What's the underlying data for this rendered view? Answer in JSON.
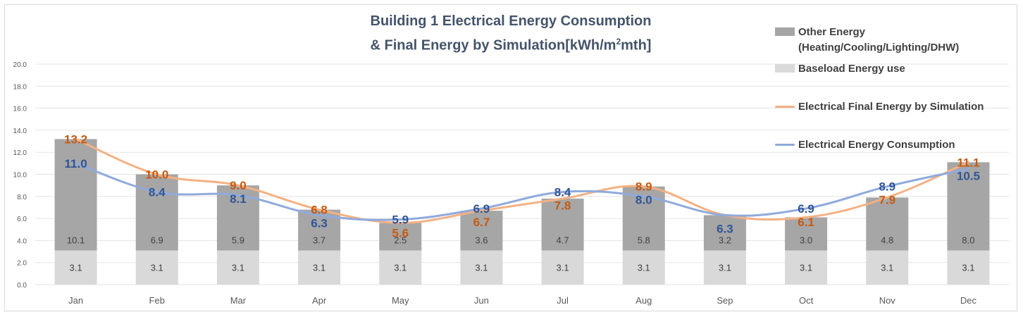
{
  "chart_data": {
    "type": "bar",
    "title_line1": "Building 1 Electrical Energy Consumption",
    "title_line2_prefix": "& Final Energy by Simulation[kWh/m",
    "title_line2_sup": "2",
    "title_line2_suffix": "mth]",
    "categories": [
      "Jan",
      "Feb",
      "Mar",
      "Apr",
      "May",
      "Jun",
      "Jul",
      "Aug",
      "Sep",
      "Oct",
      "Nov",
      "Dec"
    ],
    "ylim": [
      0,
      20
    ],
    "yticks": [
      "0.0",
      "2.0",
      "4.0",
      "6.0",
      "8.0",
      "10.0",
      "12.0",
      "14.0",
      "16.0",
      "18.0",
      "20.0"
    ],
    "grid": true,
    "legend_position": "right",
    "series": [
      {
        "name": "Baseload Energy use",
        "kind": "bar",
        "color": "#d9d9d9",
        "values": [
          3.1,
          3.1,
          3.1,
          3.1,
          3.1,
          3.1,
          3.1,
          3.1,
          3.1,
          3.1,
          3.1,
          3.1
        ],
        "labels": [
          "3.1",
          "3.1",
          "3.1",
          "3.1",
          "3.1",
          "3.1",
          "3.1",
          "3.1",
          "3.1",
          "3.1",
          "3.1",
          "3.1"
        ]
      },
      {
        "name": "Other Energy (Heating/Cooling/Lighting/DHW)",
        "kind": "bar",
        "color": "#a6a6a6",
        "values": [
          10.1,
          6.9,
          5.9,
          3.7,
          2.5,
          3.6,
          4.7,
          5.8,
          3.2,
          3.0,
          4.8,
          8.0
        ],
        "labels": [
          "10.1",
          "6.9",
          "5.9",
          "3.7",
          "2.5",
          "3.6",
          "4.7",
          "5.8",
          "3.2",
          "3.0",
          "4.8",
          "8.0"
        ]
      },
      {
        "name": "Electrical Final Energy by Simulation",
        "kind": "line",
        "color": "#f4b183",
        "label_color": "#c55a11",
        "values": [
          13.2,
          10.0,
          9.0,
          6.8,
          5.6,
          6.7,
          7.8,
          8.9,
          6.3,
          6.1,
          7.9,
          11.1
        ],
        "labels": [
          "13.2",
          "10.0",
          "9.0",
          "6.8",
          "5.6",
          "6.7",
          "7.8",
          "8.9",
          "",
          "6.1",
          "7.9",
          "11.1"
        ]
      },
      {
        "name": "Electrical Energy Consumption",
        "kind": "line",
        "color": "#8faadc",
        "label_color": "#2f5597",
        "values": [
          11.0,
          8.4,
          8.1,
          6.3,
          5.9,
          6.9,
          8.4,
          8.0,
          6.3,
          6.9,
          8.9,
          10.5
        ],
        "labels": [
          "11.0",
          "8.4",
          "8.1",
          "6.3",
          "5.9",
          "6.9",
          "8.4",
          "8.0",
          "6.3",
          "6.9",
          "8.9",
          "10.5"
        ]
      }
    ],
    "legend": {
      "other_line1": "Other Energy",
      "other_line2": "(Heating/Cooling/Lighting/DHW)",
      "baseload": "Baseload Energy use",
      "simulation": "Electrical Final Energy by Simulation",
      "consumption": "Electrical Energy Consumption"
    }
  }
}
